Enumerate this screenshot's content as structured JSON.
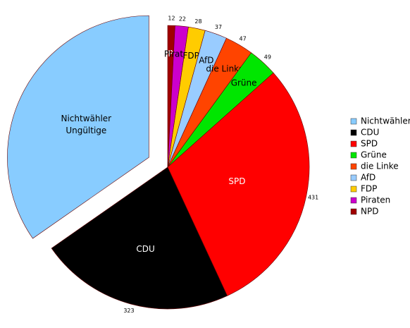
{
  "chart_data": {
    "type": "pie",
    "categories": [
      "NPD",
      "Piraten",
      "FDP",
      "AfD",
      "die Linke",
      "Grüne",
      "SPD",
      "CDU",
      "Nichtwähler"
    ],
    "values": [
      12,
      22,
      28,
      37,
      47,
      49,
      431,
      323,
      504
    ],
    "value_labels": [
      "12",
      "22",
      "28",
      "37",
      "47",
      "49",
      "431",
      "323",
      null
    ],
    "colors": [
      "#a00000",
      "#cc00cc",
      "#ffcc00",
      "#99ccff",
      "#ff4400",
      "#00e600",
      "#ff0000",
      "#000000",
      "#88ccff"
    ],
    "exploded": [
      8
    ],
    "annotations": [
      "Ungültige"
    ],
    "legend": "right"
  }
}
